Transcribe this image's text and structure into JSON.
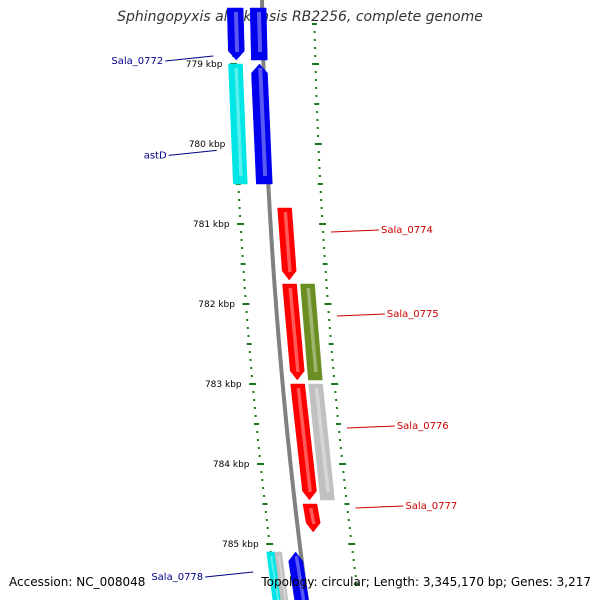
{
  "title": "Sphingopyxis alaskensis RB2256, complete genome",
  "footer": {
    "accession": "Accession: NC_008048",
    "summary": "Topology: circular; Length: 3,345,170 bp; Genes: 3,217"
  },
  "colors": {
    "backbone": "#808080",
    "tick": "#1a7a1a",
    "label_forward": "#00008b",
    "label_reverse": "#cc0000",
    "blue": "#0000ee",
    "cyan": "#00e6e6",
    "red": "#ff0000",
    "olive": "#6b8e23",
    "gray": "#c0c0c0"
  },
  "chart_data": {
    "type": "genome-map",
    "scale_labels": [
      {
        "kbp": 779,
        "text": "779 kbp"
      },
      {
        "kbp": 780,
        "text": "780 kbp"
      },
      {
        "kbp": 781,
        "text": "781 kbp"
      },
      {
        "kbp": 782,
        "text": "782 kbp"
      },
      {
        "kbp": 783,
        "text": "783 kbp"
      },
      {
        "kbp": 784,
        "text": "784 kbp"
      },
      {
        "kbp": 785,
        "text": "785 kbp"
      }
    ],
    "labeled_genes": [
      {
        "name": "Sala_0772",
        "strand": "forward",
        "anchor_kbp": 778.9
      },
      {
        "name": "astD",
        "strand": "forward",
        "anchor_kbp": 780.08
      },
      {
        "name": "Sala_0774",
        "strand": "reverse",
        "anchor_kbp": 781.1
      },
      {
        "name": "Sala_0775",
        "strand": "reverse",
        "anchor_kbp": 782.15
      },
      {
        "name": "Sala_0776",
        "strand": "reverse",
        "anchor_kbp": 783.55
      },
      {
        "name": "Sala_0777",
        "strand": "reverse",
        "anchor_kbp": 784.55
      },
      {
        "name": "Sala_0778",
        "strand": "forward",
        "anchor_kbp": 785.35
      }
    ]
  }
}
